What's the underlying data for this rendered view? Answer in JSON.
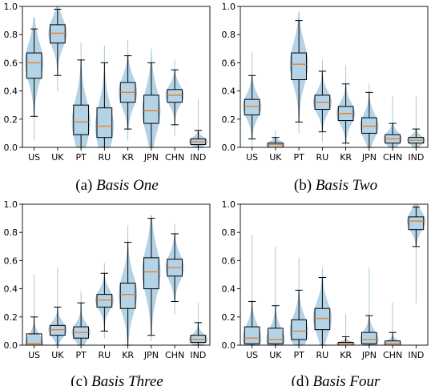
{
  "colors": {
    "violin": "#a9cce3",
    "median": "#e8822a",
    "box": "#000000"
  },
  "chart_data": [
    {
      "type": "box",
      "caption_prefix": "(a) ",
      "caption_title": "Basis One",
      "categories": [
        "US",
        "UK",
        "PT",
        "RU",
        "KR",
        "JPN",
        "CHN",
        "IND"
      ],
      "ylim": [
        0,
        1.0
      ],
      "yticks": [
        "0.0",
        "0.2",
        "0.4",
        "0.6",
        "0.8",
        "1.0"
      ],
      "grid": false,
      "boxes": [
        {
          "whislo": 0.22,
          "q1": 0.49,
          "med": 0.6,
          "q3": 0.67,
          "whishi": 0.84,
          "vmin": 0.05,
          "vmax": 0.92
        },
        {
          "whislo": 0.51,
          "q1": 0.74,
          "med": 0.81,
          "q3": 0.87,
          "whishi": 0.98,
          "vmin": 0.4,
          "vmax": 1.0
        },
        {
          "whislo": 0.0,
          "q1": 0.09,
          "med": 0.18,
          "q3": 0.3,
          "whishi": 0.62,
          "vmin": 0.0,
          "vmax": 0.74
        },
        {
          "whislo": 0.0,
          "q1": 0.07,
          "med": 0.15,
          "q3": 0.28,
          "whishi": 0.6,
          "vmin": 0.0,
          "vmax": 0.72
        },
        {
          "whislo": 0.13,
          "q1": 0.32,
          "med": 0.39,
          "q3": 0.46,
          "whishi": 0.65,
          "vmin": 0.05,
          "vmax": 0.76
        },
        {
          "whislo": 0.0,
          "q1": 0.17,
          "med": 0.26,
          "q3": 0.37,
          "whishi": 0.6,
          "vmin": 0.0,
          "vmax": 0.7
        },
        {
          "whislo": 0.16,
          "q1": 0.32,
          "med": 0.37,
          "q3": 0.41,
          "whishi": 0.55,
          "vmin": 0.08,
          "vmax": 0.62
        },
        {
          "whislo": 0.0,
          "q1": 0.02,
          "med": 0.04,
          "q3": 0.06,
          "whishi": 0.12,
          "vmin": 0.0,
          "vmax": 0.34
        }
      ]
    },
    {
      "type": "box",
      "caption_prefix": "(b) ",
      "caption_title": "Basis Two",
      "categories": [
        "US",
        "UK",
        "PT",
        "RU",
        "KR",
        "JPN",
        "CHN",
        "IND"
      ],
      "ylim": [
        0,
        1.0
      ],
      "yticks": [
        "0.0",
        "0.2",
        "0.4",
        "0.6",
        "0.8",
        "1.0"
      ],
      "grid": false,
      "boxes": [
        {
          "whislo": 0.06,
          "q1": 0.23,
          "med": 0.29,
          "q3": 0.34,
          "whishi": 0.51,
          "vmin": 0.0,
          "vmax": 0.67
        },
        {
          "whislo": 0.0,
          "q1": 0.0,
          "med": 0.02,
          "q3": 0.03,
          "whishi": 0.07,
          "vmin": 0.0,
          "vmax": 0.12
        },
        {
          "whislo": 0.18,
          "q1": 0.48,
          "med": 0.59,
          "q3": 0.67,
          "whishi": 0.9,
          "vmin": 0.1,
          "vmax": 0.96
        },
        {
          "whislo": 0.11,
          "q1": 0.27,
          "med": 0.32,
          "q3": 0.37,
          "whishi": 0.54,
          "vmin": 0.04,
          "vmax": 0.62
        },
        {
          "whislo": 0.03,
          "q1": 0.19,
          "med": 0.24,
          "q3": 0.29,
          "whishi": 0.45,
          "vmin": 0.0,
          "vmax": 0.58
        },
        {
          "whislo": 0.0,
          "q1": 0.1,
          "med": 0.15,
          "q3": 0.21,
          "whishi": 0.39,
          "vmin": 0.0,
          "vmax": 0.45
        },
        {
          "whislo": 0.0,
          "q1": 0.03,
          "med": 0.06,
          "q3": 0.09,
          "whishi": 0.17,
          "vmin": 0.0,
          "vmax": 0.36
        },
        {
          "whislo": 0.0,
          "q1": 0.03,
          "med": 0.05,
          "q3": 0.07,
          "whishi": 0.13,
          "vmin": 0.0,
          "vmax": 0.36
        }
      ]
    },
    {
      "type": "box",
      "caption_prefix": "(c) ",
      "caption_title": "Basis Three",
      "categories": [
        "US",
        "UK",
        "PT",
        "RU",
        "KR",
        "JPN",
        "CHN",
        "IND"
      ],
      "ylim": [
        0,
        1.0
      ],
      "yticks": [
        "0.0",
        "0.2",
        "0.4",
        "0.6",
        "0.8",
        "1.0"
      ],
      "grid": false,
      "boxes": [
        {
          "whislo": 0.0,
          "q1": 0.0,
          "med": 0.01,
          "q3": 0.08,
          "whishi": 0.2,
          "vmin": 0.0,
          "vmax": 0.5
        },
        {
          "whislo": 0.0,
          "q1": 0.07,
          "med": 0.11,
          "q3": 0.14,
          "whishi": 0.27,
          "vmin": 0.0,
          "vmax": 0.55
        },
        {
          "whislo": 0.0,
          "q1": 0.05,
          "med": 0.09,
          "q3": 0.13,
          "whishi": 0.3,
          "vmin": 0.0,
          "vmax": 0.38
        },
        {
          "whislo": 0.1,
          "q1": 0.27,
          "med": 0.32,
          "q3": 0.36,
          "whishi": 0.51,
          "vmin": 0.05,
          "vmax": 0.58
        },
        {
          "whislo": 0.0,
          "q1": 0.26,
          "med": 0.36,
          "q3": 0.44,
          "whishi": 0.73,
          "vmin": 0.0,
          "vmax": 0.85
        },
        {
          "whislo": 0.07,
          "q1": 0.4,
          "med": 0.52,
          "q3": 0.62,
          "whishi": 0.9,
          "vmin": 0.03,
          "vmax": 0.92
        },
        {
          "whislo": 0.31,
          "q1": 0.49,
          "med": 0.55,
          "q3": 0.61,
          "whishi": 0.79,
          "vmin": 0.22,
          "vmax": 0.86
        },
        {
          "whislo": 0.0,
          "q1": 0.02,
          "med": 0.04,
          "q3": 0.07,
          "whishi": 0.16,
          "vmin": 0.0,
          "vmax": 0.3
        }
      ]
    },
    {
      "type": "box",
      "caption_prefix": "(d) ",
      "caption_title": "Basis Four",
      "categories": [
        "US",
        "UK",
        "PT",
        "RU",
        "KR",
        "JPN",
        "CHN",
        "IND"
      ],
      "ylim": [
        0,
        1.0
      ],
      "yticks": [
        "0.0",
        "0.2",
        "0.4",
        "0.6",
        "0.8",
        "1.0"
      ],
      "grid": false,
      "boxes": [
        {
          "whislo": 0.0,
          "q1": 0.01,
          "med": 0.05,
          "q3": 0.13,
          "whishi": 0.31,
          "vmin": 0.0,
          "vmax": 0.78
        },
        {
          "whislo": 0.0,
          "q1": 0.01,
          "med": 0.04,
          "q3": 0.12,
          "whishi": 0.28,
          "vmin": 0.0,
          "vmax": 0.7
        },
        {
          "whislo": 0.0,
          "q1": 0.04,
          "med": 0.1,
          "q3": 0.18,
          "whishi": 0.39,
          "vmin": 0.0,
          "vmax": 0.62
        },
        {
          "whislo": 0.0,
          "q1": 0.11,
          "med": 0.19,
          "q3": 0.26,
          "whishi": 0.48,
          "vmin": 0.0,
          "vmax": 0.55
        },
        {
          "whislo": 0.0,
          "q1": 0.0,
          "med": 0.01,
          "q3": 0.02,
          "whishi": 0.06,
          "vmin": 0.0,
          "vmax": 0.22
        },
        {
          "whislo": 0.0,
          "q1": 0.01,
          "med": 0.04,
          "q3": 0.09,
          "whishi": 0.21,
          "vmin": 0.0,
          "vmax": 0.55
        },
        {
          "whislo": 0.0,
          "q1": 0.0,
          "med": 0.01,
          "q3": 0.03,
          "whishi": 0.09,
          "vmin": 0.0,
          "vmax": 0.3
        },
        {
          "whislo": 0.7,
          "q1": 0.82,
          "med": 0.88,
          "q3": 0.91,
          "whishi": 0.98,
          "vmin": 0.3,
          "vmax": 1.0
        }
      ]
    }
  ]
}
